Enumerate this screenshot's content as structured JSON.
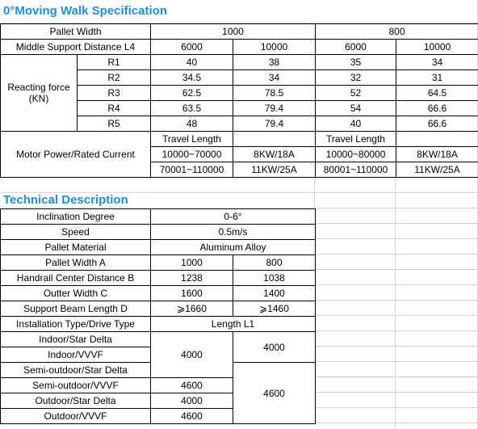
{
  "title": "0°Moving Walk Specification",
  "spec_table": {
    "rows": [
      [
        "Pallet Width",
        "1000",
        "800"
      ],
      [
        "Middle Support Distance L4",
        "6000",
        "10000",
        "6000",
        "10000"
      ],
      [
        "Reacting force (KN)",
        "R1",
        "40",
        "38",
        "35",
        "34"
      ],
      [
        "R2",
        "34.5",
        "34",
        "32",
        "31"
      ],
      [
        "R3",
        "62.5",
        "78.5",
        "52",
        "64.5"
      ],
      [
        "R4",
        "63.5",
        "79.4",
        "54",
        "66.6"
      ],
      [
        "R5",
        "48",
        "79.4",
        "40",
        "66.6"
      ],
      [
        "Motor Power/Rated Current",
        "Travel Length",
        "Travel Length"
      ],
      [
        "10000~70000",
        "8KW/18A",
        "10000~80000",
        "8KW/18A"
      ],
      [
        "70001~110000",
        "11KW/25A",
        "80001~110000",
        "11KW/25A"
      ]
    ]
  },
  "tech_title": "Technical Description",
  "tech_table": {
    "rows": [
      [
        "Inclination Degree",
        "0-6°"
      ],
      [
        "Speed",
        "0.5m/s"
      ],
      [
        "Pallet Material",
        "Aluminum Alloy"
      ],
      [
        "Pallet Width A",
        "1000",
        "800"
      ],
      [
        "Handrail Center Distance B",
        "1238",
        "1038"
      ],
      [
        "Outter Width C",
        "1600",
        "1400"
      ],
      [
        "Support Beam Length D",
        "⩾1660",
        "⩾1460"
      ],
      [
        "Installation Type/Drive Type",
        "Length L1"
      ],
      [
        "Indoor/Star Delta",
        "4000",
        "4000"
      ],
      [
        "Indoor/VVVF"
      ],
      [
        "Semi-outdoor/Star Delta",
        "4600"
      ],
      [
        "Semi-outdoor/VVVF",
        "4600"
      ],
      [
        "Outdoor/Star Delta",
        "4000"
      ],
      [
        "Outdoor/VVVF",
        "4600"
      ]
    ]
  }
}
